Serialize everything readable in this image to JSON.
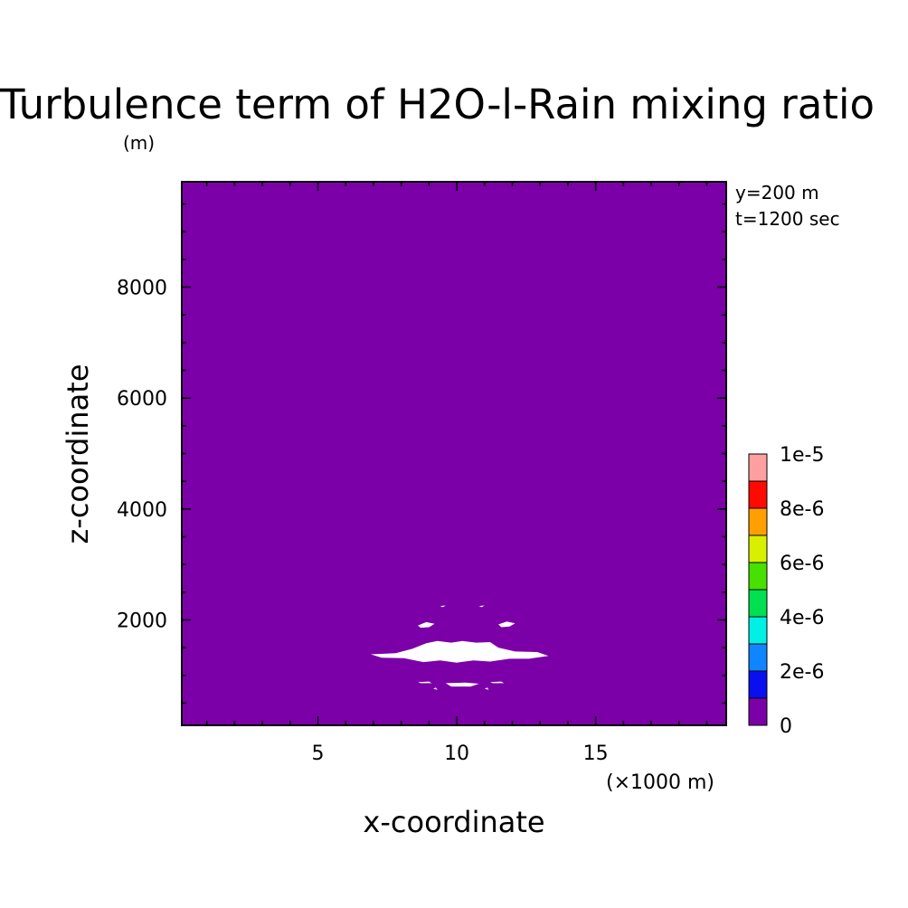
{
  "chart_data": {
    "type": "heatmap",
    "title": "Turbulence term of H2O-l-Rain mixing ratio",
    "y_unit_label": "(m)",
    "x_unit_label": "(×1000 m)",
    "xlabel": "x-coordinate",
    "ylabel": "z-coordinate",
    "annotations": [
      "y=200 m",
      "t=1200 sec"
    ],
    "xlim": [
      0.1,
      19.7
    ],
    "ylim": [
      100,
      9900
    ],
    "x_ticks": [
      5,
      10,
      15
    ],
    "x_tick_labels": [
      "5",
      "10",
      "15"
    ],
    "y_ticks": [
      2000,
      4000,
      6000,
      8000
    ],
    "y_tick_labels": [
      "2000",
      "4000",
      "6000",
      "8000"
    ],
    "background_level_color": "#7b00a8",
    "gap_color": "#ffffff",
    "gap_regions": [
      {
        "name": "main-band",
        "points": [
          [
            6.9,
            1380
          ],
          [
            7.8,
            1400
          ],
          [
            8.4,
            1480
          ],
          [
            8.9,
            1580
          ],
          [
            9.3,
            1620
          ],
          [
            9.8,
            1590
          ],
          [
            10.2,
            1620
          ],
          [
            10.7,
            1590
          ],
          [
            11.2,
            1600
          ],
          [
            11.5,
            1500
          ],
          [
            12.1,
            1430
          ],
          [
            12.9,
            1420
          ],
          [
            13.3,
            1350
          ],
          [
            12.6,
            1300
          ],
          [
            11.9,
            1300
          ],
          [
            11.2,
            1250
          ],
          [
            10.6,
            1270
          ],
          [
            10.0,
            1230
          ],
          [
            9.4,
            1270
          ],
          [
            8.8,
            1240
          ],
          [
            8.1,
            1310
          ],
          [
            7.3,
            1320
          ]
        ]
      },
      {
        "name": "left-blob",
        "points": [
          [
            8.6,
            1900
          ],
          [
            8.9,
            1960
          ],
          [
            9.2,
            1930
          ],
          [
            9.0,
            1870
          ],
          [
            8.7,
            1860
          ]
        ]
      },
      {
        "name": "right-blob",
        "points": [
          [
            11.5,
            1920
          ],
          [
            11.8,
            1970
          ],
          [
            12.1,
            1940
          ],
          [
            11.9,
            1880
          ],
          [
            11.6,
            1870
          ]
        ]
      },
      {
        "name": "lower-bar",
        "points": [
          [
            9.6,
            860
          ],
          [
            10.3,
            870
          ],
          [
            10.8,
            850
          ],
          [
            10.5,
            800
          ],
          [
            9.8,
            800
          ]
        ]
      },
      {
        "name": "lower-left-fleck",
        "points": [
          [
            8.6,
            880
          ],
          [
            9.0,
            890
          ],
          [
            9.1,
            860
          ],
          [
            8.7,
            860
          ]
        ]
      },
      {
        "name": "lower-right-fleck",
        "points": [
          [
            11.2,
            880
          ],
          [
            11.6,
            890
          ],
          [
            11.7,
            860
          ],
          [
            11.3,
            860
          ]
        ]
      },
      {
        "name": "bottom-left-tick",
        "points": [
          [
            9.15,
            760
          ],
          [
            9.25,
            780
          ],
          [
            9.3,
            740
          ]
        ]
      },
      {
        "name": "bottom-right-tick",
        "points": [
          [
            11.0,
            760
          ],
          [
            11.1,
            780
          ],
          [
            11.15,
            740
          ]
        ]
      },
      {
        "name": "top-left-fleck",
        "points": [
          [
            9.4,
            2250
          ],
          [
            9.6,
            2260
          ],
          [
            9.5,
            2230
          ]
        ]
      },
      {
        "name": "top-right-fleck",
        "points": [
          [
            10.8,
            2250
          ],
          [
            11.0,
            2260
          ],
          [
            10.9,
            2230
          ]
        ]
      }
    ],
    "legend": {
      "labels": [
        "1e-5",
        "8e-6",
        "6e-6",
        "4e-6",
        "2e-6",
        "0"
      ],
      "colors_bottom_to_top": [
        "#7b00a8",
        "#0a0ff0",
        "#0f86ff",
        "#00f0e6",
        "#00e050",
        "#47e000",
        "#d8f000",
        "#ffa000",
        "#ff0a00",
        "#ffa0a0"
      ]
    }
  }
}
